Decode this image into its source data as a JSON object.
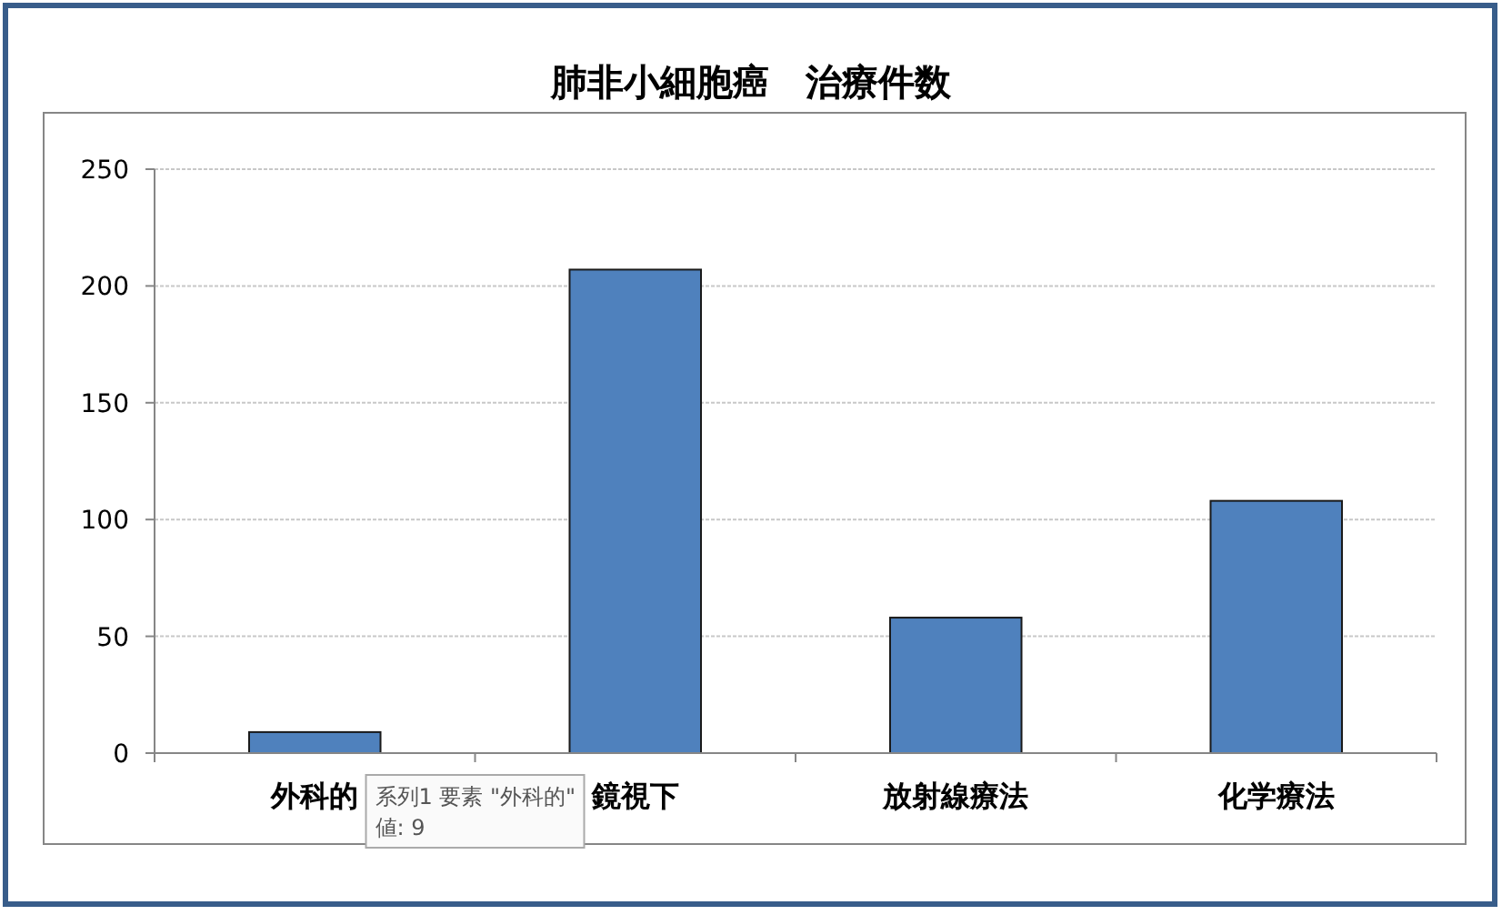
{
  "chart_data": {
    "type": "bar",
    "title": "肺非小細胞癌　治療件数",
    "categories": [
      "外科的",
      "鏡視下",
      "放射線療法",
      "化学療法"
    ],
    "values": [
      9,
      207,
      58,
      108
    ],
    "color": "#4f81bd",
    "ylim": [
      0,
      250
    ],
    "yticks": [
      0,
      50,
      100,
      150,
      200,
      250
    ],
    "grid": "y",
    "annotations": [
      "系列1 要素 \"外科的\"",
      "値: 9"
    ]
  }
}
